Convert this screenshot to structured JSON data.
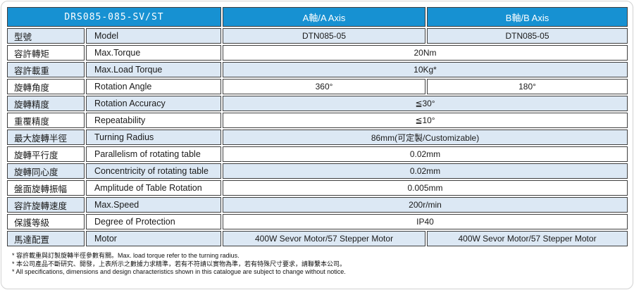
{
  "table": {
    "header": {
      "series": "DRS085-085-SV/ST",
      "a_axis": "A軸/A Axis",
      "b_axis": "B軸/B Axis"
    },
    "rows": [
      {
        "zh": "型號",
        "en": "Model",
        "span": false,
        "a": "DTN085-05",
        "b": "DTN085-05"
      },
      {
        "zh": "容許轉矩",
        "en": "Max.Torque",
        "span": true,
        "value": "20Nm"
      },
      {
        "zh": "容許載重",
        "en": "Max.Load Torque",
        "span": true,
        "value": "10Kg*"
      },
      {
        "zh": "旋轉角度",
        "en": "Rotation Angle",
        "span": false,
        "a": "360°",
        "b": "180°"
      },
      {
        "zh": "旋轉精度",
        "en": "Rotation Accuracy",
        "span": true,
        "value": "≦30°"
      },
      {
        "zh": "重覆精度",
        "en": "Repeatability",
        "span": true,
        "value": "≦10°"
      },
      {
        "zh": "最大旋轉半徑",
        "en": "Turning Radius",
        "span": true,
        "value": "86mm(可定製/Customizable)"
      },
      {
        "zh": "旋轉平行度",
        "en": "Parallelism of rotating table",
        "span": true,
        "value": "0.02mm"
      },
      {
        "zh": "旋轉同心度",
        "en": "Concentricity of rotating table",
        "span": true,
        "value": "0.02mm"
      },
      {
        "zh": "盤面旋轉振幅",
        "en": "Amplitude of Table Rotation",
        "span": true,
        "value": "0.005mm"
      },
      {
        "zh": "容許旋轉速度",
        "en": "Max.Speed",
        "span": true,
        "value": "200r/min"
      },
      {
        "zh": "保護等級",
        "en": "Degree of Protection",
        "span": true,
        "value": "IP40"
      },
      {
        "zh": "馬達配置",
        "en": "Motor",
        "span": false,
        "a": "400W Sevor Motor/57 Stepper Motor",
        "b": "400W Sevor Motor/57 Stepper Motor"
      }
    ]
  },
  "footnotes": [
    "* 容許載重與訂製旋轉半徑參數有關。Max. load torque refer to the turning radius.",
    "* 本公司產品不斷研究、開發，上表所示之數據力求精準，若有不符請以實物為準，若有特殊尺寸要求，請聯繫本公司。",
    "* All specifications, dimensions and design characteristics shown in this catalogue are subject to change without notice."
  ],
  "colors": {
    "header_bg": "#1791d2",
    "header_text": "#ffffff",
    "row_alt_bg": "#dce8f4",
    "grid_border": "#3f3f3f",
    "text": "#1a1a1a"
  }
}
